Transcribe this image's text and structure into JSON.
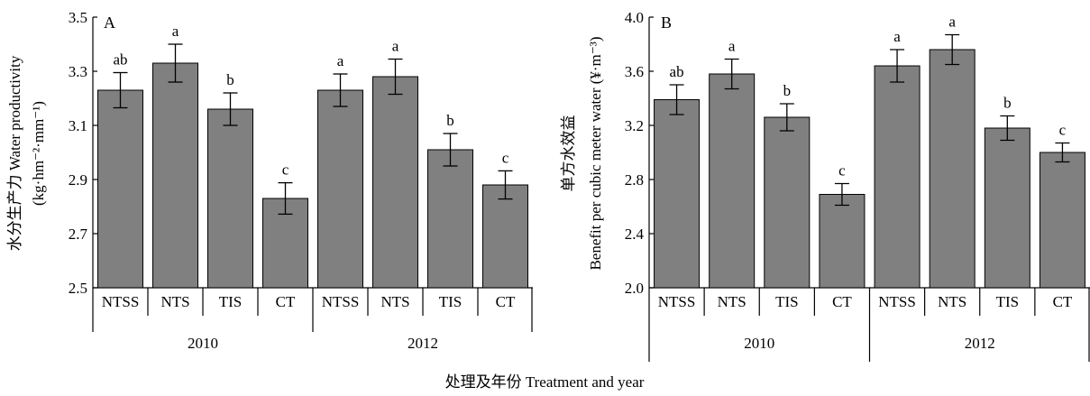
{
  "figure": {
    "xlabel": "处理及年份 Treatment and year"
  },
  "chart_data": [
    {
      "type": "bar",
      "panel_label": "A",
      "ylabel": [
        "水分生产力 Water productivity",
        "(kg·hm⁻²·mm⁻¹)"
      ],
      "ylim": [
        2.5,
        3.5
      ],
      "yticks": [
        2.5,
        2.7,
        2.9,
        3.1,
        3.3,
        3.5
      ],
      "categories": [
        "NTSS",
        "NTS",
        "TIS",
        "CT",
        "NTSS",
        "NTS",
        "TIS",
        "CT"
      ],
      "groups": [
        {
          "label": "2010",
          "count": 4
        },
        {
          "label": "2012",
          "count": 4
        }
      ],
      "values": [
        3.23,
        3.33,
        3.16,
        2.83,
        3.23,
        3.28,
        3.01,
        2.88
      ],
      "errors": [
        0.065,
        0.07,
        0.06,
        0.058,
        0.06,
        0.065,
        0.06,
        0.052
      ],
      "letters": [
        "ab",
        "a",
        "b",
        "c",
        "a",
        "a",
        "b",
        "c"
      ]
    },
    {
      "type": "bar",
      "panel_label": "B",
      "ylabel": [
        "单方水效益",
        "Benefit per cubic meter water (¥·m⁻³)"
      ],
      "ylim": [
        2.0,
        4.0
      ],
      "yticks": [
        2.0,
        2.4,
        2.8,
        3.2,
        3.6,
        4.0
      ],
      "categories": [
        "NTSS",
        "NTS",
        "TIS",
        "CT",
        "NTSS",
        "NTS",
        "TIS",
        "CT"
      ],
      "groups": [
        {
          "label": "2010",
          "count": 4
        },
        {
          "label": "2012",
          "count": 4
        }
      ],
      "values": [
        3.39,
        3.58,
        3.26,
        2.69,
        3.64,
        3.76,
        3.18,
        3.0
      ],
      "errors": [
        0.11,
        0.11,
        0.1,
        0.08,
        0.12,
        0.11,
        0.09,
        0.07
      ],
      "letters": [
        "ab",
        "a",
        "b",
        "c",
        "a",
        "a",
        "b",
        "c"
      ]
    }
  ],
  "colors": {
    "bar_fill": "#808080",
    "axis": "#000000"
  }
}
